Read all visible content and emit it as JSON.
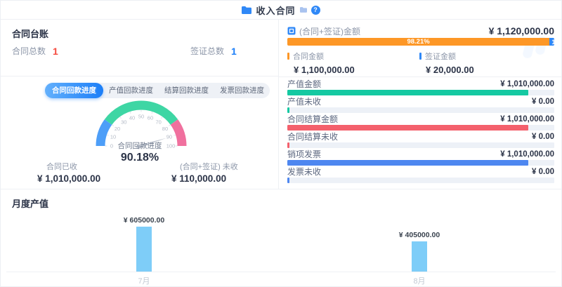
{
  "header": {
    "title": "收入合同",
    "help": "?"
  },
  "ledger": {
    "title": "合同台账",
    "items": [
      {
        "label": "合同总数",
        "value": "1",
        "color": "#f5493d"
      },
      {
        "label": "签证总数",
        "value": "1",
        "color": "#1b7ef8"
      }
    ]
  },
  "tabs": [
    {
      "label": "合同回款进度",
      "active": true
    },
    {
      "label": "产值回款进度",
      "active": false
    },
    {
      "label": "结算回款进度",
      "active": false
    },
    {
      "label": "发票回款进度",
      "active": false
    }
  ],
  "received": [
    {
      "label": "合同已收",
      "value": "¥ 1,010,000.00"
    },
    {
      "label": "(合同+签证) 未收",
      "value": "¥ 110,000.00"
    }
  ],
  "summary": {
    "label": "(合同+签证)金额",
    "value": "¥ 1,120,000.00",
    "segments": [
      {
        "name": "合同金额",
        "value": "¥ 1,100,000.00",
        "pct": 98.21,
        "bar_text": "98.21%",
        "color": "#fd9726"
      },
      {
        "name": "签证金额",
        "value": "¥ 20,000.00",
        "pct": 1.79,
        "bar_text": "1.",
        "color": "#2f88f7"
      }
    ]
  },
  "progress_rows": [
    {
      "label": "产值金额",
      "value": "¥ 1,010,000.00",
      "pct": 90.18,
      "color": "#15c9a2"
    },
    {
      "label": "产值未收",
      "value": "¥ 0.00",
      "pct": 0.7,
      "color": "#15c9a2"
    },
    {
      "label": "合同结算金额",
      "value": "¥ 1,010,000.00",
      "pct": 90.18,
      "color": "#f4606c"
    },
    {
      "label": "合同结算未收",
      "value": "¥ 0.00",
      "pct": 0.7,
      "color": "#f4606c"
    },
    {
      "label": "销项发票",
      "value": "¥ 1,010,000.00",
      "pct": 90.18,
      "color": "#4e87f0"
    },
    {
      "label": "发票未收",
      "value": "¥ 0.00",
      "pct": 0.7,
      "color": "#4e87f0"
    }
  ],
  "monthly_title": "月度产值",
  "accent_color": "#2f88f7",
  "chart_data": [
    {
      "type": "gauge",
      "title": "合同回款进度",
      "value": 90.18,
      "display": "90.18%",
      "min": 0,
      "max": 100,
      "tick_step": 10,
      "segments": [
        {
          "from": 0,
          "to": 20,
          "color": "#4d9ef8"
        },
        {
          "from": 20,
          "to": 80,
          "color": "#3ed6a4"
        },
        {
          "from": 80,
          "to": 100,
          "color": "#f0709e"
        }
      ],
      "needle_color": "#c6cbd4"
    },
    {
      "type": "stacked_bar",
      "title": "(合同+签证)金额",
      "total": 1120000,
      "series": [
        {
          "name": "合同金额",
          "value": 1100000,
          "pct": 98.21,
          "color": "#fd9726"
        },
        {
          "name": "签证金额",
          "value": 20000,
          "pct": 1.79,
          "color": "#2f88f7"
        }
      ]
    },
    {
      "type": "bar",
      "title": "月度产值",
      "categories": [
        "7月",
        "8月"
      ],
      "values": [
        605000,
        405000
      ],
      "value_labels": [
        "¥ 605000.00",
        "¥ 405000.00"
      ],
      "bar_color": "#7ecdf8",
      "ylim": [
        0,
        650000
      ],
      "grid": false,
      "legend": "none"
    }
  ]
}
